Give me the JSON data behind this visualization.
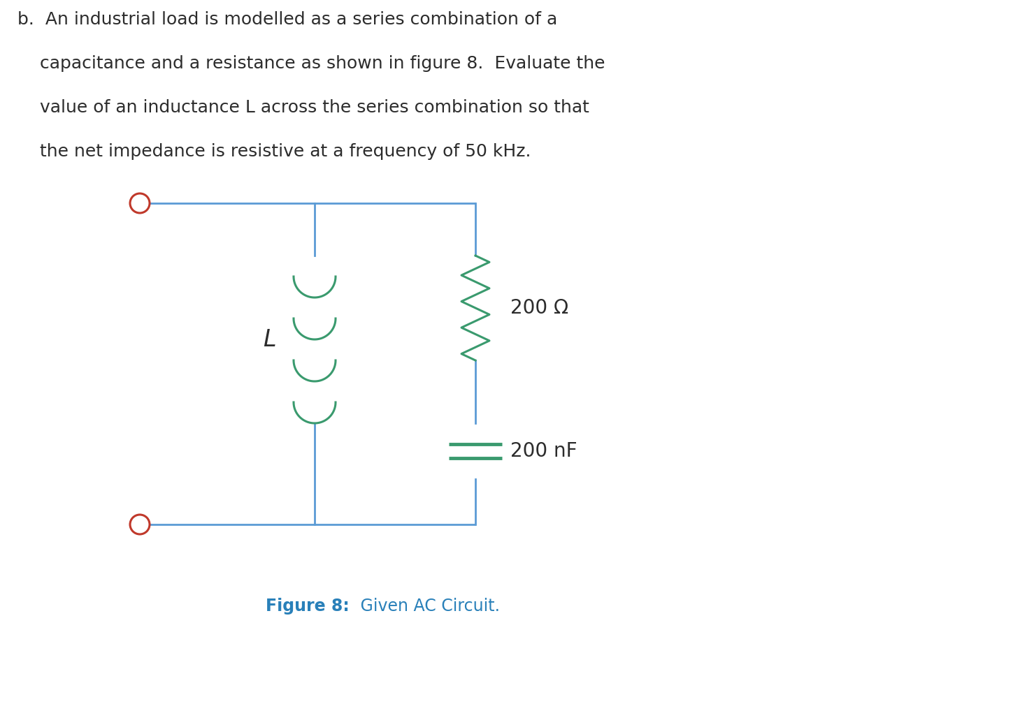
{
  "wire_color": "#5b9bd5",
  "component_color": "#3a9a6e",
  "terminal_color": "#c0392b",
  "text_color": "#2c2c2c",
  "caption_color": "#2980b9",
  "bg_color": "#ffffff",
  "resistor_label": "200 Ω",
  "capacitor_label": "200 nF",
  "inductor_label": "L",
  "title_lines": [
    "b.  An industrial load is modelled as a series combination of a",
    "    capacitance and a resistance as shown in figure 8.  Evaluate the",
    "    value of an inductance L across the series combination so that",
    "    the net impedance is resistive at a frequency of 50 kHz."
  ],
  "figure_caption_bold": "Figure 8:",
  "figure_caption_normal": " Given AC Circuit.",
  "title_fontsize": 18,
  "label_fontsize": 20,
  "caption_fontsize": 17
}
